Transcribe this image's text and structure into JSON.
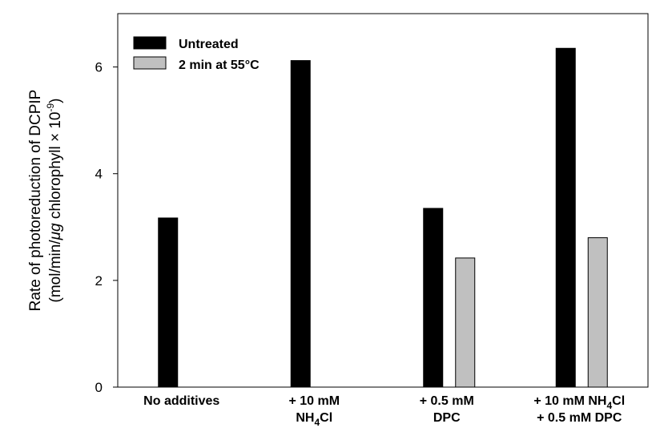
{
  "chart_data": {
    "type": "bar",
    "categories": [
      [
        "No additives"
      ],
      [
        "+ 10 mM",
        "NH4Cl"
      ],
      [
        "+ 0.5 mM",
        "DPC"
      ],
      [
        "+ 10 mM NH4Cl",
        "+ 0.5 mM DPC"
      ]
    ],
    "series": [
      {
        "name": "Untreated",
        "color": "#000000",
        "values": [
          3.17,
          6.12,
          3.35,
          6.35
        ]
      },
      {
        "name": "2 min at 55°C",
        "color": "#c0c0c0",
        "values": [
          null,
          null,
          2.42,
          2.8
        ]
      }
    ],
    "ylabel_line1": "Rate of photoreduction of DCPIP",
    "ylabel_line2_prefix": "(mol/min/",
    "ylabel_line2_unit": "μg",
    "ylabel_line2_suffix": " chlorophyll × 10",
    "ylabel_line2_exp": "-9",
    "ylabel_line2_close": ")",
    "yticks": [
      0,
      2,
      4,
      6
    ],
    "ylim": [
      0,
      7
    ],
    "grid": false,
    "legend_position": "top-left"
  }
}
